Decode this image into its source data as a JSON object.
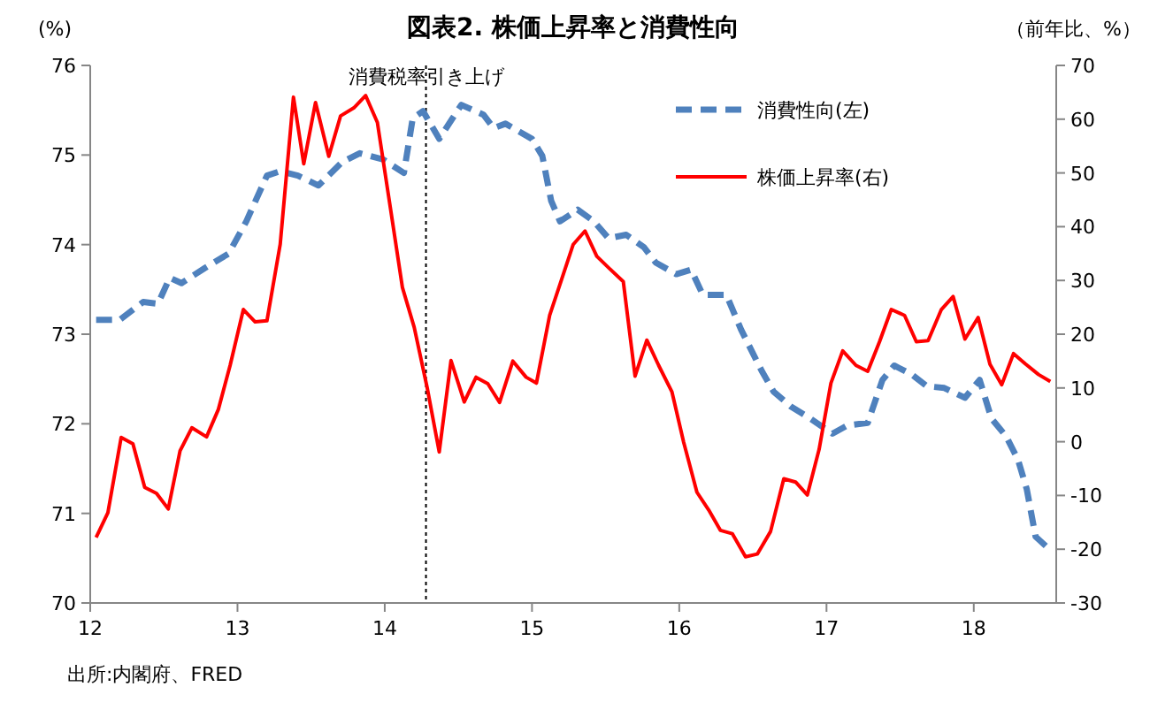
{
  "chart_data": {
    "type": "line",
    "title": "図表2. 株価上昇率と消費性向",
    "ylabel": "(%)",
    "y2label": "（前年比、%）",
    "xlim": [
      12,
      18.56
    ],
    "xticks": [
      12,
      13,
      14,
      15,
      16,
      17,
      18
    ],
    "ylim": [
      70,
      76
    ],
    "yticks": [
      70,
      71,
      72,
      73,
      74,
      75,
      76
    ],
    "y2lim": [
      -30,
      70
    ],
    "y2ticks": [
      -30,
      -20,
      -10,
      0,
      10,
      20,
      30,
      40,
      50,
      60,
      70
    ],
    "grid": false,
    "legend": "top right",
    "marker": "none",
    "ref_lines": [
      {
        "axis": "x",
        "value": 14.28,
        "label": "消費税率引き上げ",
        "color": "#000000",
        "line_style": "dotted"
      }
    ],
    "annotations": [
      "出所:内閣府、FRED"
    ],
    "series": [
      {
        "name": "消費性向(左)",
        "color": "#4f81bd",
        "line_style": "dashed",
        "x": [
          12.04,
          12.2,
          12.36,
          12.46,
          12.54,
          12.62,
          12.78,
          12.94,
          13.06,
          13.2,
          13.29,
          13.41,
          13.55,
          13.71,
          13.83,
          13.99,
          14.13,
          14.19,
          14.26,
          14.37,
          14.52,
          14.67,
          14.74,
          14.82,
          15.0,
          15.07,
          15.13,
          15.19,
          15.31,
          15.42,
          15.52,
          15.64,
          15.76,
          15.84,
          15.98,
          16.08,
          16.16,
          16.32,
          16.42,
          16.56,
          16.64,
          16.76,
          16.88,
          16.96,
          17.04,
          17.14,
          17.28,
          17.38,
          17.46,
          17.58,
          17.68,
          17.8,
          17.94,
          18.04,
          18.12,
          18.22,
          18.3,
          18.36,
          18.42,
          18.52
        ],
        "values": [
          73.16,
          73.16,
          73.36,
          73.34,
          73.63,
          73.57,
          73.74,
          73.9,
          74.26,
          74.77,
          74.82,
          74.77,
          74.66,
          74.92,
          75.02,
          74.95,
          74.8,
          75.41,
          75.49,
          75.18,
          75.56,
          75.45,
          75.3,
          75.35,
          75.18,
          74.99,
          74.49,
          74.26,
          74.39,
          74.26,
          74.07,
          74.11,
          73.97,
          73.8,
          73.67,
          73.72,
          73.44,
          73.44,
          73.05,
          72.59,
          72.36,
          72.19,
          72.07,
          71.98,
          71.89,
          71.98,
          72.01,
          72.49,
          72.65,
          72.55,
          72.42,
          72.4,
          72.29,
          72.49,
          72.06,
          71.86,
          71.6,
          71.27,
          70.74,
          70.59
        ]
      },
      {
        "name": "株価上昇率(右)",
        "color": "#ff0000",
        "line_style": "solid",
        "axis": "y2",
        "x": [
          12.04,
          12.12,
          12.21,
          12.29,
          12.37,
          12.45,
          12.53,
          12.61,
          12.69,
          12.79,
          12.87,
          12.95,
          13.04,
          13.12,
          13.2,
          13.29,
          13.38,
          13.45,
          13.53,
          13.62,
          13.7,
          13.79,
          13.87,
          13.95,
          14.04,
          14.12,
          14.2,
          14.29,
          14.37,
          14.45,
          14.54,
          14.62,
          14.7,
          14.78,
          14.87,
          14.96,
          15.03,
          15.12,
          15.2,
          15.28,
          15.36,
          15.44,
          15.53,
          15.62,
          15.7,
          15.78,
          15.86,
          15.95,
          16.03,
          16.12,
          16.2,
          16.28,
          16.36,
          16.45,
          16.53,
          16.62,
          16.71,
          16.79,
          16.87,
          16.95,
          17.03,
          17.11,
          17.2,
          17.28,
          17.36,
          17.44,
          17.53,
          17.61,
          17.69,
          17.78,
          17.86,
          17.94,
          18.03,
          18.11,
          18.19,
          18.27,
          18.35,
          18.44,
          18.52
        ],
        "values": [
          -17.8,
          -13.2,
          0.8,
          -0.4,
          -8.5,
          -9.6,
          -12.5,
          -1.7,
          2.6,
          0.9,
          6,
          14.2,
          24.6,
          22.3,
          22.5,
          36.7,
          64.1,
          51.7,
          63.1,
          53.1,
          60.6,
          62.1,
          64.4,
          59.4,
          43.2,
          28.7,
          21.3,
          9.8,
          -1.9,
          15.1,
          7.4,
          12,
          10.8,
          7.3,
          15,
          12,
          10.9,
          23.5,
          30.1,
          36.7,
          39.2,
          34.5,
          32.1,
          29.8,
          12.2,
          18.9,
          14.2,
          9.3,
          -0.1,
          -9.4,
          -12.7,
          -16.5,
          -17.1,
          -21.4,
          -20.9,
          -16.7,
          -6.9,
          -7.5,
          -9.9,
          -1.4,
          10.9,
          16.9,
          14.2,
          13.1,
          18.6,
          24.6,
          23.5,
          18.6,
          18.8,
          24.6,
          27,
          19.1,
          23.1,
          14.4,
          10.6,
          16.4,
          14.5,
          12.5,
          11.2
        ]
      }
    ]
  }
}
